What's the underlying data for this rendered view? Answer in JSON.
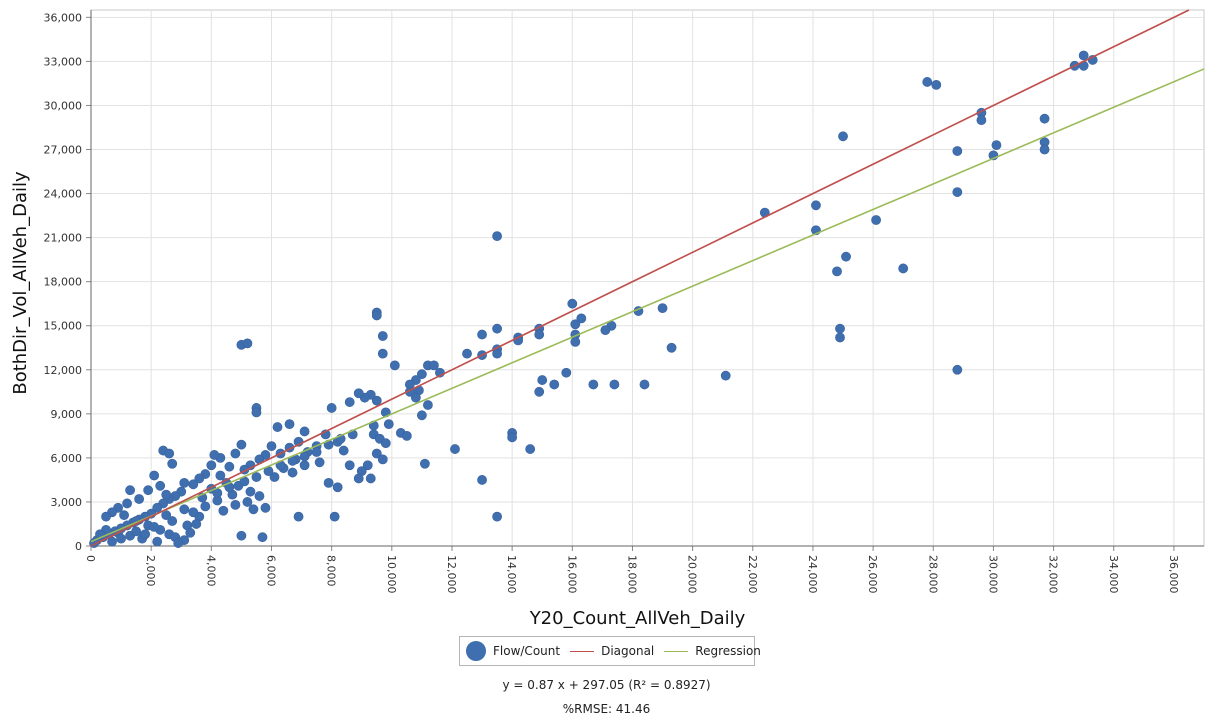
{
  "chart_data": {
    "type": "scatter",
    "title": "",
    "xlabel": "Y20_Count_AllVeh_Daily",
    "ylabel": "BothDir_Vol_AllVeh_Daily",
    "xlim": [
      0,
      37000
    ],
    "ylim": [
      0,
      36500
    ],
    "x_ticks": [
      "0",
      "2,000",
      "4,000",
      "6,000",
      "8,000",
      "10,000",
      "12,000",
      "14,000",
      "16,000",
      "18,000",
      "20,000",
      "22,000",
      "24,000",
      "26,000",
      "28,000",
      "30,000",
      "32,000",
      "34,000",
      "36,000"
    ],
    "y_ticks": [
      "0",
      "3,000",
      "6,000",
      "9,000",
      "12,000",
      "15,000",
      "18,000",
      "21,000",
      "24,000",
      "27,000",
      "30,000",
      "33,000",
      "36,000"
    ],
    "grid": true,
    "legend_position": "bottom-center",
    "colors": {
      "points": "#3f6fae",
      "diagonal": "#c0504d",
      "regression": "#9bbb59",
      "grid": "#e2e2e2"
    },
    "series": [
      {
        "name": "Flow/Count",
        "kind": "points",
        "points": [
          [
            33000,
            33400
          ],
          [
            33300,
            33100
          ],
          [
            32700,
            32700
          ],
          [
            33000,
            32700
          ],
          [
            27800,
            31600
          ],
          [
            28100,
            31400
          ],
          [
            29600,
            29500
          ],
          [
            29600,
            29000
          ],
          [
            31700,
            29100
          ],
          [
            25000,
            27900
          ],
          [
            28800,
            26900
          ],
          [
            30100,
            27300
          ],
          [
            30000,
            26600
          ],
          [
            31700,
            27500
          ],
          [
            31700,
            27000
          ],
          [
            28800,
            24100
          ],
          [
            22400,
            22700
          ],
          [
            24100,
            23200
          ],
          [
            26100,
            22200
          ],
          [
            24100,
            21500
          ],
          [
            13500,
            21100
          ],
          [
            25100,
            19700
          ],
          [
            27000,
            18900
          ],
          [
            24800,
            18700
          ],
          [
            16000,
            16500
          ],
          [
            19000,
            16200
          ],
          [
            18200,
            16000
          ],
          [
            16300,
            15500
          ],
          [
            16100,
            15100
          ],
          [
            17300,
            15000
          ],
          [
            17100,
            14700
          ],
          [
            24900,
            14800
          ],
          [
            24900,
            14200
          ],
          [
            13500,
            14800
          ],
          [
            13000,
            14400
          ],
          [
            14900,
            14800
          ],
          [
            14900,
            14400
          ],
          [
            14200,
            14200
          ],
          [
            14200,
            14000
          ],
          [
            16100,
            14400
          ],
          [
            16100,
            13900
          ],
          [
            13500,
            13400
          ],
          [
            13500,
            13100
          ],
          [
            13000,
            13000
          ],
          [
            12500,
            13100
          ],
          [
            19300,
            13500
          ],
          [
            15800,
            11800
          ],
          [
            16700,
            11000
          ],
          [
            17400,
            11000
          ],
          [
            18400,
            11000
          ],
          [
            21100,
            11600
          ],
          [
            28800,
            12000
          ],
          [
            15000,
            11300
          ],
          [
            15400,
            11000
          ],
          [
            14900,
            10500
          ],
          [
            9500,
            15900
          ],
          [
            9500,
            15700
          ],
          [
            9700,
            14300
          ],
          [
            9700,
            13100
          ],
          [
            10100,
            12300
          ],
          [
            11200,
            12300
          ],
          [
            11400,
            12300
          ],
          [
            11600,
            11800
          ],
          [
            11000,
            11700
          ],
          [
            10800,
            11300
          ],
          [
            10600,
            11000
          ],
          [
            10600,
            10500
          ],
          [
            10900,
            10600
          ],
          [
            10800,
            10100
          ],
          [
            9500,
            9900
          ],
          [
            9800,
            9100
          ],
          [
            9300,
            10300
          ],
          [
            9100,
            10100
          ],
          [
            8900,
            10400
          ],
          [
            8600,
            9800
          ],
          [
            8000,
            9400
          ],
          [
            5000,
            13700
          ],
          [
            5200,
            13800
          ],
          [
            12100,
            6600
          ],
          [
            13000,
            4500
          ],
          [
            13500,
            2000
          ],
          [
            11100,
            5600
          ],
          [
            14000,
            7700
          ],
          [
            14000,
            7400
          ],
          [
            14600,
            6600
          ],
          [
            11000,
            8900
          ],
          [
            11200,
            9600
          ],
          [
            9400,
            8200
          ],
          [
            9400,
            7600
          ],
          [
            9600,
            7300
          ],
          [
            9900,
            8300
          ],
          [
            10300,
            7700
          ],
          [
            10500,
            7500
          ],
          [
            9800,
            7000
          ],
          [
            9500,
            6300
          ],
          [
            9700,
            5900
          ],
          [
            9200,
            5500
          ],
          [
            9000,
            5100
          ],
          [
            9300,
            4600
          ],
          [
            8900,
            4600
          ],
          [
            8600,
            5500
          ],
          [
            8400,
            6500
          ],
          [
            8200,
            7100
          ],
          [
            7800,
            7600
          ],
          [
            7500,
            6800
          ],
          [
            7600,
            5700
          ],
          [
            7900,
            4300
          ],
          [
            8200,
            4000
          ],
          [
            6900,
            2000
          ],
          [
            8100,
            2000
          ],
          [
            5500,
            9400
          ],
          [
            5500,
            9100
          ],
          [
            6200,
            8100
          ],
          [
            6600,
            8300
          ],
          [
            7100,
            7800
          ],
          [
            6900,
            7100
          ],
          [
            6600,
            6700
          ],
          [
            6300,
            6300
          ],
          [
            6000,
            6800
          ],
          [
            5800,
            6200
          ],
          [
            5600,
            5900
          ],
          [
            5300,
            5500
          ],
          [
            5100,
            5200
          ],
          [
            5000,
            6900
          ],
          [
            4800,
            6300
          ],
          [
            4600,
            5400
          ],
          [
            4300,
            4800
          ],
          [
            4500,
            4300
          ],
          [
            4900,
            4100
          ],
          [
            5300,
            3700
          ],
          [
            5600,
            3400
          ],
          [
            5800,
            2600
          ],
          [
            5400,
            2500
          ],
          [
            5000,
            700
          ],
          [
            5700,
            600
          ],
          [
            4300,
            6000
          ],
          [
            4100,
            6200
          ],
          [
            4000,
            5500
          ],
          [
            3800,
            4900
          ],
          [
            3600,
            4600
          ],
          [
            3400,
            4200
          ],
          [
            3100,
            4300
          ],
          [
            3000,
            3700
          ],
          [
            2800,
            3400
          ],
          [
            2600,
            3200
          ],
          [
            2400,
            2900
          ],
          [
            2200,
            2600
          ],
          [
            2000,
            2200
          ],
          [
            1800,
            2000
          ],
          [
            1600,
            1800
          ],
          [
            1400,
            1600
          ],
          [
            1200,
            1400
          ],
          [
            1000,
            1200
          ],
          [
            800,
            1000
          ],
          [
            600,
            800
          ],
          [
            400,
            600
          ],
          [
            200,
            400
          ],
          [
            2400,
            6500
          ],
          [
            2600,
            6300
          ],
          [
            2700,
            5600
          ],
          [
            2100,
            4800
          ],
          [
            2300,
            4100
          ],
          [
            2500,
            3500
          ],
          [
            1900,
            3800
          ],
          [
            1300,
            3800
          ],
          [
            1600,
            3200
          ],
          [
            1200,
            2900
          ],
          [
            900,
            2600
          ],
          [
            700,
            2300
          ],
          [
            500,
            2000
          ],
          [
            1100,
            2100
          ],
          [
            1500,
            1700
          ],
          [
            1900,
            1400
          ],
          [
            2300,
            1100
          ],
          [
            2600,
            800
          ],
          [
            2800,
            600
          ],
          [
            3100,
            400
          ],
          [
            2900,
            200
          ],
          [
            2200,
            300
          ],
          [
            1700,
            500
          ],
          [
            1300,
            700
          ],
          [
            900,
            900
          ],
          [
            500,
            1100
          ],
          [
            300,
            800
          ],
          [
            100,
            200
          ],
          [
            3600,
            2000
          ],
          [
            3400,
            2300
          ],
          [
            3200,
            1400
          ],
          [
            3800,
            2700
          ],
          [
            4200,
            3100
          ],
          [
            4700,
            3500
          ],
          [
            4000,
            3900
          ],
          [
            6400,
            5300
          ],
          [
            6800,
            5900
          ],
          [
            7200,
            6400
          ],
          [
            6100,
            4700
          ],
          [
            6700,
            5000
          ],
          [
            7100,
            5500
          ],
          [
            4400,
            2400
          ],
          [
            4800,
            2800
          ],
          [
            5200,
            3000
          ],
          [
            3500,
            1500
          ],
          [
            3300,
            900
          ],
          [
            2700,
            1700
          ],
          [
            2100,
            1300
          ],
          [
            1500,
            1000
          ],
          [
            1000,
            500
          ],
          [
            700,
            300
          ],
          [
            1800,
            800
          ],
          [
            2500,
            2100
          ],
          [
            3100,
            2500
          ],
          [
            3700,
            3300
          ],
          [
            4200,
            3600
          ],
          [
            4600,
            4000
          ],
          [
            5100,
            4400
          ],
          [
            5500,
            4700
          ],
          [
            5900,
            5100
          ],
          [
            6300,
            5500
          ],
          [
            6700,
            5800
          ],
          [
            7100,
            6100
          ],
          [
            7500,
            6400
          ],
          [
            7900,
            6900
          ],
          [
            8300,
            7300
          ],
          [
            8700,
            7600
          ]
        ]
      },
      {
        "name": "Diagonal",
        "kind": "line",
        "slope": 1,
        "intercept": 0
      },
      {
        "name": "Regression",
        "kind": "line",
        "slope": 0.87,
        "intercept": 297.05
      }
    ],
    "annotations": {
      "equation": "y = 0.87 x  + 297.05  (R² = 0.8927)",
      "rmse": "%RMSE: 41.46"
    }
  },
  "legend": {
    "items": [
      "Flow/Count",
      "Diagonal",
      "Regression"
    ]
  }
}
